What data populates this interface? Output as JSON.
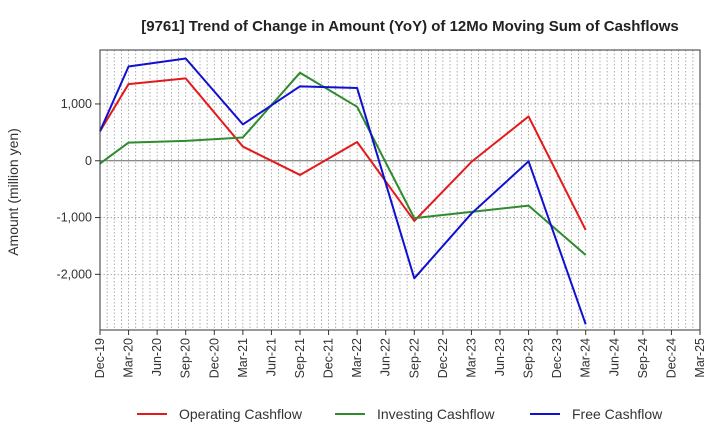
{
  "chart_data": {
    "type": "line",
    "title": "[9761]  Trend of Change in Amount (YoY) of 12Mo Moving Sum of Cashflows",
    "xlabel": "",
    "ylabel": "Amount (million yen)",
    "ylim": [
      -2980,
      1950
    ],
    "yticks": [
      1000,
      0,
      -1000,
      -2000
    ],
    "ytick_labels": [
      "1,000",
      "0",
      "-1,000",
      "-2,000"
    ],
    "categories": [
      "Dec-19",
      "Mar-20",
      "Jun-20",
      "Sep-20",
      "Dec-20",
      "Mar-21",
      "Jun-21",
      "Sep-21",
      "Dec-21",
      "Mar-22",
      "Jun-22",
      "Sep-22",
      "Dec-22",
      "Mar-23",
      "Jun-23",
      "Sep-23",
      "Dec-23",
      "Mar-24",
      "Jun-24",
      "Sep-24",
      "Dec-24",
      "Mar-25"
    ],
    "grid": true,
    "legend_position": "bottom",
    "series": [
      {
        "name": "Operating Cashflow",
        "color": "#e31a1c",
        "points": [
          [
            0,
            520
          ],
          [
            1,
            1350
          ],
          [
            3,
            1450
          ],
          [
            5,
            250
          ],
          [
            7,
            -250
          ],
          [
            9,
            330
          ],
          [
            11,
            -1060
          ],
          [
            13,
            -20
          ],
          [
            15,
            780
          ],
          [
            17,
            -1220
          ]
        ]
      },
      {
        "name": "Investing Cashflow",
        "color": "#2e8b2e",
        "points": [
          [
            0,
            -50
          ],
          [
            1,
            320
          ],
          [
            3,
            350
          ],
          [
            5,
            410
          ],
          [
            7,
            1550
          ],
          [
            9,
            950
          ],
          [
            11,
            -1010
          ],
          [
            13,
            -900
          ],
          [
            15,
            -790
          ],
          [
            17,
            -1660
          ]
        ]
      },
      {
        "name": "Free Cashflow",
        "color": "#1010d0",
        "points": [
          [
            0,
            520
          ],
          [
            1,
            1660
          ],
          [
            3,
            1800
          ],
          [
            5,
            640
          ],
          [
            7,
            1310
          ],
          [
            9,
            1280
          ],
          [
            11,
            -2070
          ],
          [
            13,
            -930
          ],
          [
            15,
            -10
          ],
          [
            17,
            -2880
          ]
        ]
      }
    ]
  }
}
